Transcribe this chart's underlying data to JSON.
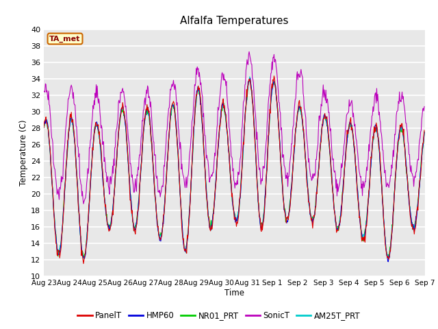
{
  "title": "Alfalfa Temperatures",
  "ylabel": "Temperature (C)",
  "xlabel": "Time",
  "ylim": [
    10,
    40
  ],
  "annotation": "TA_met",
  "series_names": [
    "PanelT",
    "HMP60",
    "NR01_PRT",
    "SonicT",
    "AM25T_PRT"
  ],
  "series_colors": [
    "#dd0000",
    "#0000dd",
    "#00cc00",
    "#bb00bb",
    "#00cccc"
  ],
  "background_color": "#ffffff",
  "plot_bg_color": "#e8e8e8",
  "grid_color": "#ffffff",
  "n_days": 15,
  "points_per_day": 48,
  "day_maxes_base": [
    29,
    29,
    28,
    32,
    29,
    32,
    33,
    29,
    37,
    31,
    30,
    29,
    28,
    28,
    28
  ],
  "day_mins_base": [
    13,
    12,
    16,
    16,
    15,
    13,
    16,
    17,
    16,
    17,
    17,
    16,
    15,
    12,
    16
  ],
  "day_maxes_sonic": [
    33,
    33,
    32,
    33,
    32,
    35,
    35,
    34,
    39,
    35,
    35,
    31,
    31,
    32,
    32
  ],
  "day_mins_sonic": [
    20,
    19,
    21,
    21,
    20,
    21,
    22,
    21,
    22,
    22,
    22,
    21,
    21,
    21,
    22
  ],
  "figsize": [
    6.4,
    4.8
  ],
  "dpi": 100
}
